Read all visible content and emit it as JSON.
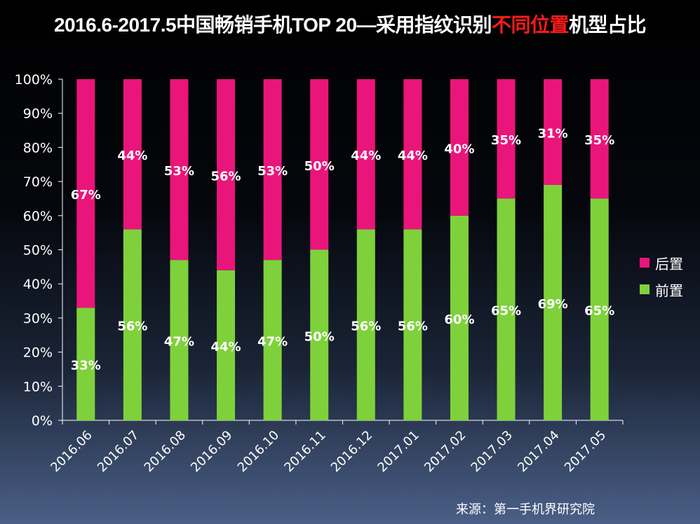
{
  "chart_data": {
    "type": "bar",
    "stacked": true,
    "title": {
      "prefix": "2016.6-2017.5中国畅销手机TOP 20—采用指纹识别",
      "highlight": "不同位置",
      "suffix": "机型占比"
    },
    "categories": [
      "2016.06",
      "2016.07",
      "2016.08",
      "2016.09",
      "2016.10",
      "2016.11",
      "2016.12",
      "2017.01",
      "2017.02",
      "2017.03",
      "2017.04",
      "2017.05"
    ],
    "series": [
      {
        "name": "前置",
        "color": "#7fd13b",
        "values": [
          33,
          56,
          47,
          44,
          47,
          50,
          56,
          56,
          60,
          65,
          69,
          65
        ]
      },
      {
        "name": "后置",
        "color": "#ea157a",
        "values": [
          67,
          44,
          53,
          56,
          53,
          50,
          44,
          44,
          40,
          35,
          31,
          35
        ]
      }
    ],
    "ylim": [
      0,
      100
    ],
    "yticks": [
      0,
      10,
      20,
      30,
      40,
      50,
      60,
      70,
      80,
      90,
      100
    ],
    "ytick_suffix": "%",
    "data_label_suffix": "%",
    "legend_position": "right",
    "legend_order": [
      "后置",
      "前置"
    ],
    "highlight_color": "#ff1a1a"
  },
  "source": "来源：第一手机界研究院"
}
